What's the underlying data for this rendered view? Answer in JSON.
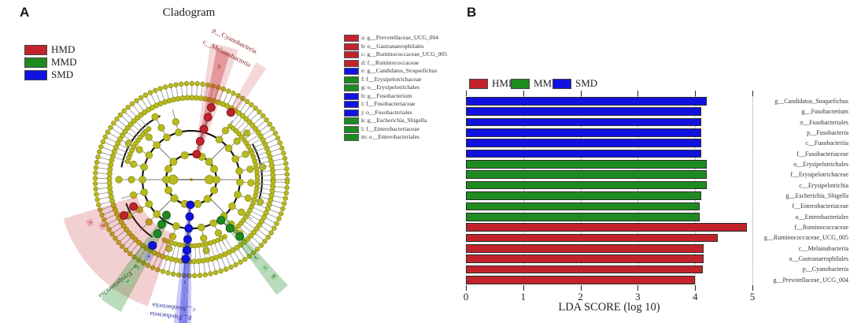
{
  "groups": {
    "HMD": "#c2232b",
    "MMD": "#1e8b20",
    "SMD": "#1111e0"
  },
  "panelA": {
    "label": "A",
    "title": "Cladogram",
    "legend": [
      {
        "label": "HMD",
        "group": "HMD"
      },
      {
        "label": "MMD",
        "group": "MMD"
      },
      {
        "label": "SMD",
        "group": "SMD"
      }
    ],
    "taxa_legend": [
      {
        "key": "a",
        "label": "g__Prevotellaceae_UCG_004",
        "group": "HMD"
      },
      {
        "key": "b",
        "label": "o__Gastranaerophilales",
        "group": "HMD"
      },
      {
        "key": "c",
        "label": "g__Ruminococcaceae_UCG_005",
        "group": "HMD"
      },
      {
        "key": "d",
        "label": "f__Ruminococcaceae",
        "group": "HMD"
      },
      {
        "key": "e",
        "label": "g__Candidatus_Stoquefichus",
        "group": "SMD"
      },
      {
        "key": "f",
        "label": "f__Erysipelotrichaceae",
        "group": "MMD"
      },
      {
        "key": "g",
        "label": "o__Erysipelotrichales",
        "group": "MMD"
      },
      {
        "key": "h",
        "label": "g__Fusobacterium",
        "group": "SMD"
      },
      {
        "key": "i",
        "label": "f__Fusobacteriaceae",
        "group": "SMD"
      },
      {
        "key": "j",
        "label": "o__Fusobacteriales",
        "group": "SMD"
      },
      {
        "key": "k",
        "label": "g__Escherichia_Shigella",
        "group": "MMD"
      },
      {
        "key": "l",
        "label": "f__Enterobacteriaceae",
        "group": "MMD"
      },
      {
        "key": "m",
        "label": "o__Enterobacteriales",
        "group": "MMD"
      }
    ],
    "cladogram": {
      "wedge_labels": {
        "top": [
          "p__Cyanobacteria",
          "c__Melainabacteria"
        ],
        "bottom_blue": [
          "c__Fusobacteriia",
          "p__Fusobacteria"
        ],
        "bottom_green": "c__Erysipelotrichia"
      },
      "markers": [
        {
          "letter": "b",
          "group": "HMD"
        },
        {
          "letter": "a",
          "group": "HMD"
        },
        {
          "letter": "d",
          "group": "HMD"
        },
        {
          "letter": "g",
          "group": "MMD"
        },
        {
          "letter": "f",
          "group": "MMD"
        },
        {
          "letter": "e",
          "group": "SMD"
        },
        {
          "letter": "h",
          "group": "SMD"
        },
        {
          "letter": "i",
          "group": "SMD"
        },
        {
          "letter": "j",
          "group": "SMD"
        },
        {
          "letter": "k",
          "group": "MMD"
        },
        {
          "letter": "l",
          "group": "MMD"
        },
        {
          "letter": "m",
          "group": "MMD"
        }
      ]
    }
  },
  "panelB": {
    "label": "B",
    "legend": [
      {
        "label": "HMD",
        "group": "HMD"
      },
      {
        "label": "MMD",
        "group": "MMD"
      },
      {
        "label": "SMD",
        "group": "SMD"
      }
    ]
  },
  "chart_data": {
    "type": "bar",
    "orientation": "horizontal",
    "title": "",
    "xlabel": "LDA SCORE (log 10)",
    "xlim": [
      0,
      5
    ],
    "xticks": [
      0,
      1,
      2,
      3,
      4,
      5
    ],
    "grid": "dotted-vertical",
    "legend_position": "top",
    "bars": [
      {
        "label": "g__Candidatus_Stoquefichus",
        "group": "SMD",
        "value": 4.2
      },
      {
        "label": "g__Fusobacterium",
        "group": "SMD",
        "value": 4.1
      },
      {
        "label": "o__Fusobacteriales",
        "group": "SMD",
        "value": 4.1
      },
      {
        "label": "p__Fusobacteria",
        "group": "SMD",
        "value": 4.1
      },
      {
        "label": "c__Fusobacteriia",
        "group": "SMD",
        "value": 4.1
      },
      {
        "label": "f__Fusobacteriaceae",
        "group": "SMD",
        "value": 4.1
      },
      {
        "label": "o__Erysipelotrichales",
        "group": "MMD",
        "value": 4.2
      },
      {
        "label": "f__Erysipelotrichaceae",
        "group": "MMD",
        "value": 4.2
      },
      {
        "label": "c__Erysipelotrichia",
        "group": "MMD",
        "value": 4.2
      },
      {
        "label": "g__Escherichia_Shigella",
        "group": "MMD",
        "value": 4.1
      },
      {
        "label": "f__Enterobacteriaceae",
        "group": "MMD",
        "value": 4.08
      },
      {
        "label": "o__Enterobacteriales",
        "group": "MMD",
        "value": 4.08
      },
      {
        "label": "f__Ruminococcaceae",
        "group": "HMD",
        "value": 4.9
      },
      {
        "label": "g__Ruminococcaceae_UCG_005",
        "group": "HMD",
        "value": 4.4
      },
      {
        "label": "c__Melainabacteria",
        "group": "HMD",
        "value": 4.15
      },
      {
        "label": "o__Gastranaerophilales",
        "group": "HMD",
        "value": 4.15
      },
      {
        "label": "p__Cyanobacteria",
        "group": "HMD",
        "value": 4.13
      },
      {
        "label": "g__Prevotellaceae_UCG_004",
        "group": "HMD",
        "value": 4.0
      }
    ]
  }
}
